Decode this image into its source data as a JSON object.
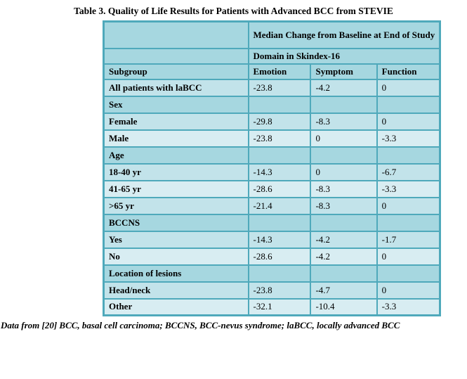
{
  "title": "Table 3. Quality of Life Results for Patients with Advanced BCC from STEVIE",
  "footnote": "Data from [20] BCC, basal cell carcinoma; BCCNS, BCC-nevus syndrome; laBCC, locally advanced BCC",
  "theme": {
    "border_color": "#4fa9bb",
    "header_bg": "#a6d7e0",
    "section_bg": "#a6d7e0",
    "row_medium_bg": "#c2e3ea",
    "row_light_bg": "#d8edf2",
    "text_color": "#000000"
  },
  "table": {
    "header": {
      "span_title": "Median Change from Baseline at End of Study",
      "domain_label": "Domain in Skindex-16",
      "columns": [
        "Subgroup",
        "Emotion",
        "Symptom",
        "Function"
      ]
    },
    "rows": [
      {
        "type": "data",
        "label": "All patients with laBCC",
        "values": [
          "-23.8",
          "-4.2",
          "0"
        ]
      },
      {
        "type": "section",
        "label": "Sex",
        "values": [
          "",
          "",
          ""
        ]
      },
      {
        "type": "data",
        "label": "Female",
        "values": [
          "-29.8",
          "-8.3",
          "0"
        ]
      },
      {
        "type": "data",
        "label": "Male",
        "values": [
          "-23.8",
          "0",
          "-3.3"
        ]
      },
      {
        "type": "section",
        "label": "Age",
        "values": [
          "",
          "",
          ""
        ]
      },
      {
        "type": "data",
        "label": "18-40 yr",
        "values": [
          "-14.3",
          "0",
          "-6.7"
        ]
      },
      {
        "type": "data",
        "label": "41-65 yr",
        "values": [
          "-28.6",
          "-8.3",
          "-3.3"
        ]
      },
      {
        "type": "data",
        "label": ">65 yr",
        "values": [
          "-21.4",
          "-8.3",
          "0"
        ]
      },
      {
        "type": "section",
        "label": "BCCNS",
        "values": [
          "",
          "",
          ""
        ]
      },
      {
        "type": "data",
        "label": "Yes",
        "values": [
          "-14.3",
          "-4.2",
          "-1.7"
        ]
      },
      {
        "type": "data",
        "label": "No",
        "values": [
          "-28.6",
          "-4.2",
          "0"
        ]
      },
      {
        "type": "section",
        "label": "Location of lesions",
        "values": [
          "",
          "",
          ""
        ]
      },
      {
        "type": "data",
        "label": "Head/neck",
        "values": [
          "-23.8",
          "-4.7",
          "0"
        ]
      },
      {
        "type": "data",
        "label": "Other",
        "values": [
          "-32.1",
          "-10.4",
          "-3.3"
        ]
      }
    ]
  }
}
